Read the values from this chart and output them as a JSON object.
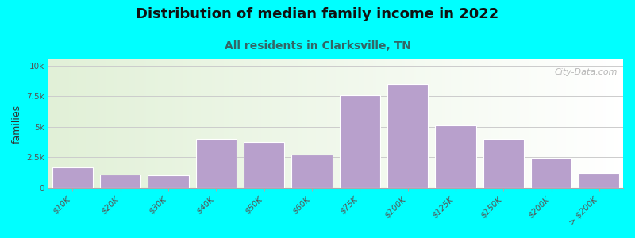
{
  "title": "Distribution of median family income in 2022",
  "subtitle": "All residents in Clarksville, TN",
  "ylabel": "families",
  "categories": [
    "$10K",
    "$20K",
    "$30K",
    "$40K",
    "$50K",
    "$60K",
    "$75K",
    "$100K",
    "$125K",
    "$150K",
    "$200K",
    "> $200K"
  ],
  "values": [
    1700,
    1100,
    1050,
    4000,
    3750,
    2700,
    7600,
    8500,
    5100,
    4000,
    2450,
    1200
  ],
  "bar_color": "#b8a0cc",
  "bar_edge_color": "#ffffff",
  "background_color": "#00ffff",
  "title_fontsize": 13,
  "subtitle_fontsize": 10,
  "ylabel_fontsize": 9,
  "tick_fontsize": 7.5,
  "yticks": [
    0,
    2500,
    5000,
    7500,
    10000
  ],
  "ytick_labels": [
    "0",
    "2.5k",
    "5k",
    "7.5k",
    "10k"
  ],
  "ylim": [
    0,
    10500
  ],
  "watermark": "City-Data.com"
}
